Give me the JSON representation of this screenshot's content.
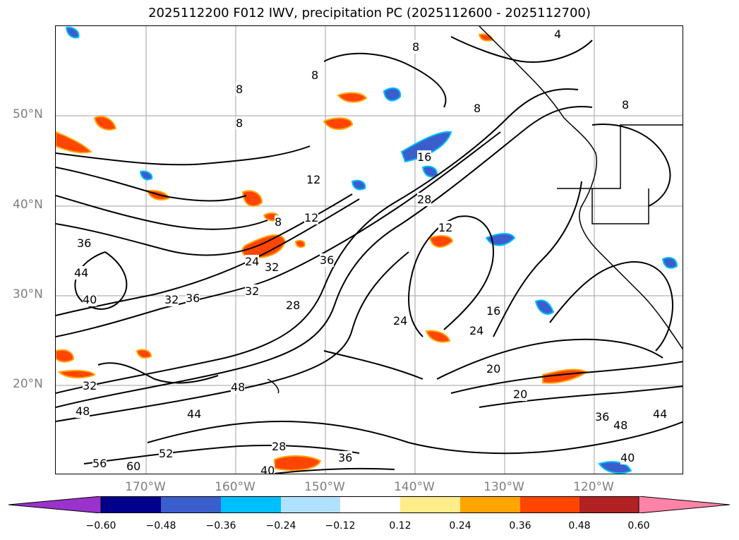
{
  "title": "2025112200 F012 IWV, precipitation PC (2025112600 - 2025112700)",
  "lat_labels": [
    "50°N",
    "40°N",
    "30°N",
    "20°N"
  ],
  "lon_labels": [
    "170°W",
    "160°W",
    "150°W",
    "140°W",
    "130°W",
    "120°W"
  ],
  "contour_labels": [
    "4",
    "8",
    "8",
    "8",
    "8",
    "8",
    "8",
    "8",
    "12",
    "12",
    "12",
    "16",
    "16",
    "20",
    "20",
    "24",
    "24",
    "24",
    "28",
    "28",
    "28",
    "32",
    "32",
    "32",
    "32",
    "36",
    "36",
    "36",
    "36",
    "36",
    "40",
    "40",
    "40",
    "44",
    "44",
    "44",
    "48",
    "48",
    "48",
    "52",
    "56",
    "60"
  ],
  "colorbar": {
    "ticks": [
      "−0.60",
      "−0.48",
      "−0.36",
      "−0.24",
      "−0.12",
      "0.12",
      "0.24",
      "0.36",
      "0.48",
      "0.60"
    ],
    "colors": [
      "#9933cc",
      "#00008b",
      "#3a5fcd",
      "#00bfff",
      "#b0e2ff",
      "#ffffff",
      "#ffec8b",
      "#ffa500",
      "#ff4500",
      "#b22222",
      "#ff83a8"
    ]
  },
  "colors": {
    "positive_fill": "#ff4500",
    "negative_fill": "#3a5fcd",
    "contour": "#000000",
    "grid": "#a0a0a0"
  }
}
